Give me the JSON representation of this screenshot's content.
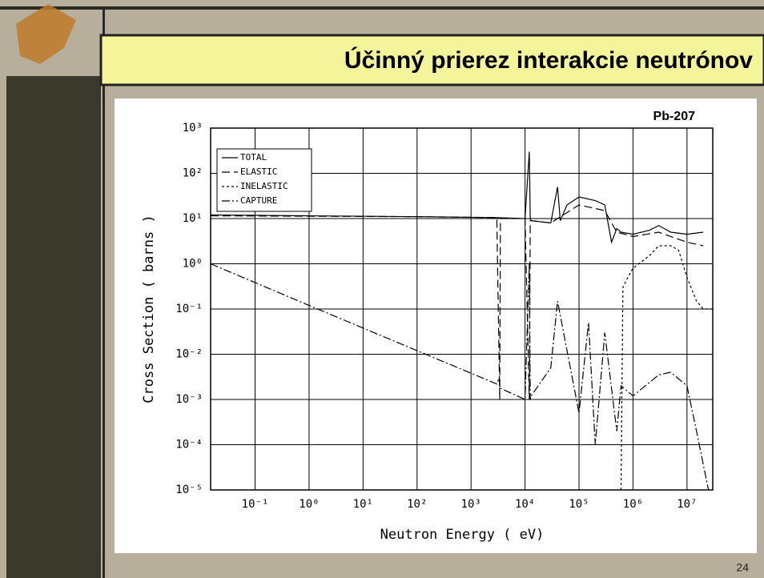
{
  "slide": {
    "title": "Účinný prierez interakcie neutrónov",
    "page_number": "24"
  },
  "chart_data": {
    "type": "line",
    "title": "Pb-207",
    "x_label": "Neutron Energy ( eV)",
    "y_label": "Cross Section ( barns )",
    "log_x": true,
    "log_y": true,
    "grid": true,
    "legend": "upper left",
    "xlim": [
      0.015,
      30000000
    ],
    "ylim": [
      1e-05,
      1000
    ],
    "xticks": [
      {
        "value": 0.1,
        "label": "10⁻¹"
      },
      {
        "value": 1,
        "label": "10⁰"
      },
      {
        "value": 10,
        "label": "10¹"
      },
      {
        "value": 100,
        "label": "10²"
      },
      {
        "value": 1000,
        "label": "10³"
      },
      {
        "value": 10000,
        "label": "10⁴"
      },
      {
        "value": 100000,
        "label": "10⁵"
      },
      {
        "value": 1000000,
        "label": "10⁶"
      },
      {
        "value": 10000000,
        "label": "10⁷"
      }
    ],
    "yticks": [
      {
        "value": 1e-05,
        "label": "10⁻⁵"
      },
      {
        "value": 0.0001,
        "label": "10⁻⁴"
      },
      {
        "value": 0.001,
        "label": "10⁻³"
      },
      {
        "value": 0.01,
        "label": "10⁻²"
      },
      {
        "value": 0.1,
        "label": "10⁻¹"
      },
      {
        "value": 1,
        "label": "10⁰"
      },
      {
        "value": 10,
        "label": "10¹"
      },
      {
        "value": 100,
        "label": "10²"
      },
      {
        "value": 1000,
        "label": "10³"
      }
    ],
    "series": [
      {
        "name": "TOTAL",
        "color": "#000000",
        "dash": "solid",
        "x": [
          0.015,
          1,
          100,
          3000,
          10000,
          12000,
          12500,
          13000,
          30000,
          40000,
          45000,
          60000,
          100000,
          200000,
          300000,
          400000,
          500000,
          600000,
          1000000,
          2000000,
          3000000,
          5000000,
          10000000,
          20000000
        ],
        "values": [
          12,
          11.5,
          11,
          10.5,
          10,
          300,
          10,
          9,
          8,
          50,
          9,
          20,
          30,
          25,
          20,
          3,
          6,
          5,
          4.5,
          5.5,
          7,
          5,
          4.5,
          5
        ]
      },
      {
        "name": "ELASTIC",
        "color": "#000000",
        "dash": "long",
        "x": [
          0.015,
          100,
          3000,
          3400,
          3500,
          10000,
          12000,
          12500,
          30000,
          100000,
          300000,
          500000,
          1000000,
          3000000,
          5000000,
          10000000,
          20000000
        ],
        "values": [
          11.5,
          11,
          10.5,
          0.001,
          10,
          10,
          0.001,
          9,
          8,
          20,
          15,
          5,
          4,
          5,
          4,
          3,
          2.5
        ]
      },
      {
        "name": "INELASTIC",
        "color": "#000000",
        "dash": "short",
        "x": [
          600000,
          650000,
          800000,
          1000000,
          2000000,
          3000000,
          5000000,
          7000000,
          10000000,
          15000000,
          20000000,
          30000000
        ],
        "values": [
          1e-05,
          0.3,
          0.5,
          0.8,
          1.5,
          2.5,
          2.5,
          2,
          0.5,
          0.15,
          0.1,
          0.1
        ]
      },
      {
        "name": "CAPTURE",
        "color": "#000000",
        "dash": "dashdot",
        "x": [
          0.015,
          1,
          100,
          3000,
          3300,
          3400,
          10000,
          12000,
          12500,
          13000,
          30000,
          40000,
          100000,
          150000,
          200000,
          300000,
          500000,
          600000,
          800000,
          1000000,
          3000000,
          5000000,
          10000000,
          15000000,
          25000000
        ],
        "values": [
          1,
          0.12,
          0.012,
          0.0022,
          0.003,
          0.0018,
          0.001,
          1,
          0.001,
          0.0012,
          0.005,
          0.15,
          0.0005,
          0.05,
          0.0001,
          0.03,
          0.0002,
          0.002,
          0.0015,
          0.0012,
          0.0035,
          0.004,
          0.002,
          0.0002,
          1e-05
        ]
      }
    ]
  }
}
